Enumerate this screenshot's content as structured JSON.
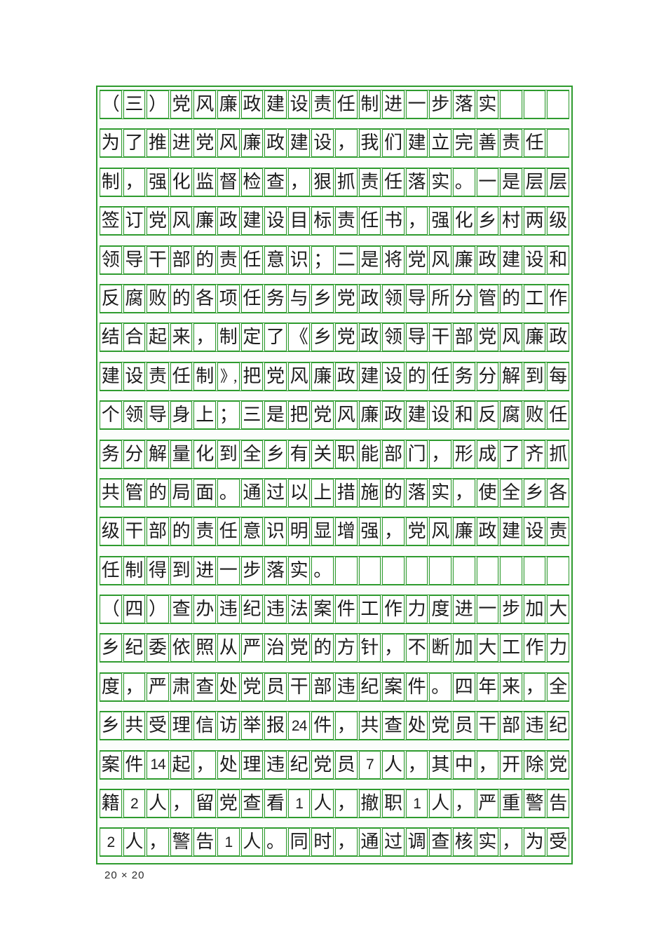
{
  "colors": {
    "grid_green": "#2e9b2e",
    "pale_gap": "#e7f3e7",
    "text": "#1c1c1c"
  },
  "grid": {
    "columns": 20,
    "row_count": 20,
    "rows": [
      [
        "（",
        "三",
        "）",
        "党",
        "风",
        "廉",
        "政",
        "建",
        "设",
        "责",
        "任",
        "制",
        "进",
        "一",
        "步",
        "落",
        "实",
        "",
        "",
        ""
      ],
      [
        "为",
        "了",
        "推",
        "进",
        "党",
        "风",
        "廉",
        "政",
        "建",
        "设",
        "，",
        "我",
        "们",
        "建",
        "立",
        "完",
        "善",
        "责",
        "任",
        ""
      ],
      [
        "制",
        "，",
        "强",
        "化",
        "监",
        "督",
        "检",
        "查",
        "，",
        "狠",
        "抓",
        "责",
        "任",
        "落",
        "实",
        "。",
        "一",
        "是",
        "层",
        "层"
      ],
      [
        "签",
        "订",
        "党",
        "风",
        "廉",
        "政",
        "建",
        "设",
        "目",
        "标",
        "责",
        "任",
        "书",
        "，",
        "强",
        "化",
        "乡",
        "村",
        "两",
        "级"
      ],
      [
        "领",
        "导",
        "干",
        "部",
        "的",
        "责",
        "任",
        "意",
        "识",
        "；",
        "二",
        "是",
        "将",
        "党",
        "风",
        "廉",
        "政",
        "建",
        "设",
        "和"
      ],
      [
        "反",
        "腐",
        "败",
        "的",
        "各",
        "项",
        "任",
        "务",
        "与",
        "乡",
        "党",
        "政",
        "领",
        "导",
        "所",
        "分",
        "管",
        "的",
        "工",
        "作"
      ],
      [
        "结",
        "合",
        "起",
        "来",
        "，",
        "制",
        "定",
        "了",
        "《",
        "乡",
        "党",
        "政",
        "领",
        "导",
        "干",
        "部",
        "党",
        "风",
        "廉",
        "政"
      ],
      [
        "建",
        "设",
        "责",
        "任",
        "制",
        "》,",
        "把",
        "党",
        "风",
        "廉",
        "政",
        "建",
        "设",
        "的",
        "任",
        "务",
        "分",
        "解",
        "到",
        "每"
      ],
      [
        "个",
        "领",
        "导",
        "身",
        "上",
        "；",
        "三",
        "是",
        "把",
        "党",
        "风",
        "廉",
        "政",
        "建",
        "设",
        "和",
        "反",
        "腐",
        "败",
        "任"
      ],
      [
        "务",
        "分",
        "解",
        "量",
        "化",
        "到",
        "全",
        "乡",
        "有",
        "关",
        "职",
        "能",
        "部",
        "门",
        "，",
        "形",
        "成",
        "了",
        "齐",
        "抓"
      ],
      [
        "共",
        "管",
        "的",
        "局",
        "面",
        "。",
        "通",
        "过",
        "以",
        "上",
        "措",
        "施",
        "的",
        "落",
        "实",
        "，",
        "使",
        "全",
        "乡",
        "各"
      ],
      [
        "级",
        "干",
        "部",
        "的",
        "责",
        "任",
        "意",
        "识",
        "明",
        "显",
        "增",
        "强",
        "，",
        "党",
        "风",
        "廉",
        "政",
        "建",
        "设",
        "责"
      ],
      [
        "任",
        "制",
        "得",
        "到",
        "进",
        "一",
        "步",
        "落",
        "实",
        "。",
        "",
        "",
        "",
        "",
        "",
        "",
        "",
        "",
        "",
        ""
      ],
      [
        "（",
        "四",
        "）",
        "查",
        "办",
        "违",
        "纪",
        "违",
        "法",
        "案",
        "件",
        "工",
        "作",
        "力",
        "度",
        "进",
        "一",
        "步",
        "加",
        "大"
      ],
      [
        "乡",
        "纪",
        "委",
        "依",
        "照",
        "从",
        "严",
        "治",
        "党",
        "的",
        "方",
        "针",
        "，",
        "不",
        "断",
        "加",
        "大",
        "工",
        "作",
        "力"
      ],
      [
        "度",
        "，",
        "严",
        "肃",
        "查",
        "处",
        "党",
        "员",
        "干",
        "部",
        "违",
        "纪",
        "案",
        "件",
        "。",
        "四",
        "年",
        "来",
        "，",
        "全"
      ],
      [
        "乡",
        "共",
        "受",
        "理",
        "信",
        "访",
        "举",
        "报",
        "24",
        "件",
        "，",
        "共",
        "查",
        "处",
        "党",
        "员",
        "干",
        "部",
        "违",
        "纪"
      ],
      [
        "案",
        "件",
        "14",
        "起",
        "，",
        "处",
        "理",
        "违",
        "纪",
        "党",
        "员",
        "7",
        "人",
        "，",
        "其",
        "中",
        "，",
        "开",
        "除",
        "党"
      ],
      [
        "籍",
        "2",
        "人",
        "，",
        "留",
        "党",
        "查",
        "看",
        "1",
        "人",
        "，",
        "撤",
        "职",
        "1",
        "人",
        "，",
        "严",
        "重",
        "警",
        "告"
      ],
      [
        "2",
        "人",
        "，",
        "警",
        "告",
        "1",
        "人",
        "。",
        "同",
        "时",
        "，",
        "通",
        "过",
        "调",
        "查",
        "核",
        "实",
        "，",
        "为",
        "受"
      ]
    ]
  },
  "footer": {
    "label": "20 × 20"
  }
}
